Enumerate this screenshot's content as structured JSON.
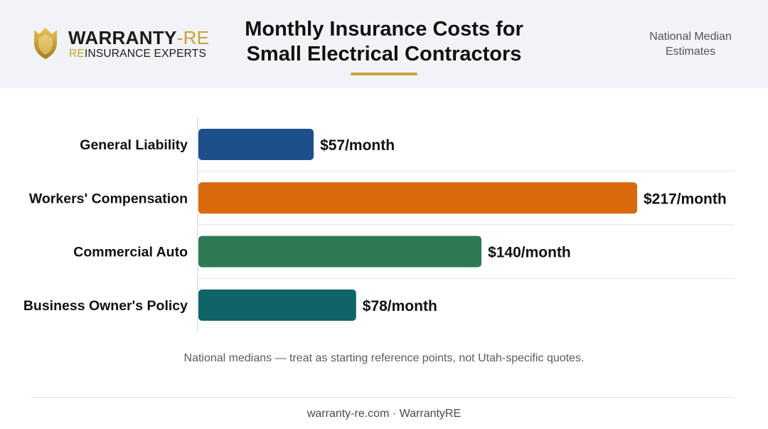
{
  "brand": {
    "name_main": "WARRANTY",
    "name_accent": "-RE",
    "tag_accent": "RE",
    "tag_rest": "INSURANCE EXPERTS",
    "icon": "shield-crown-icon",
    "gold": "#c9a23a"
  },
  "header": {
    "title_line1": "Monthly Insurance Costs for",
    "title_line2": "Small Electrical Contractors",
    "badge_line1": "National Median",
    "badge_line2": "Estimates"
  },
  "chart_data": {
    "type": "bar",
    "orientation": "horizontal",
    "categories": [
      "General Liability",
      "Workers' Compensation",
      "Commercial Auto",
      "Business Owner's Policy"
    ],
    "values": [
      57,
      217,
      140,
      78
    ],
    "value_labels": [
      "$57/month",
      "$217/month",
      "$140/month",
      "$78/month"
    ],
    "colors": [
      "#1d4f8c",
      "#d9690b",
      "#2e7a55",
      "#0f6468"
    ],
    "xlim": [
      0,
      217
    ],
    "grid": false
  },
  "note": "National medians — treat as starting reference points, not Utah-specific quotes.",
  "footer": "warranty-re.com · WarrantyRE"
}
